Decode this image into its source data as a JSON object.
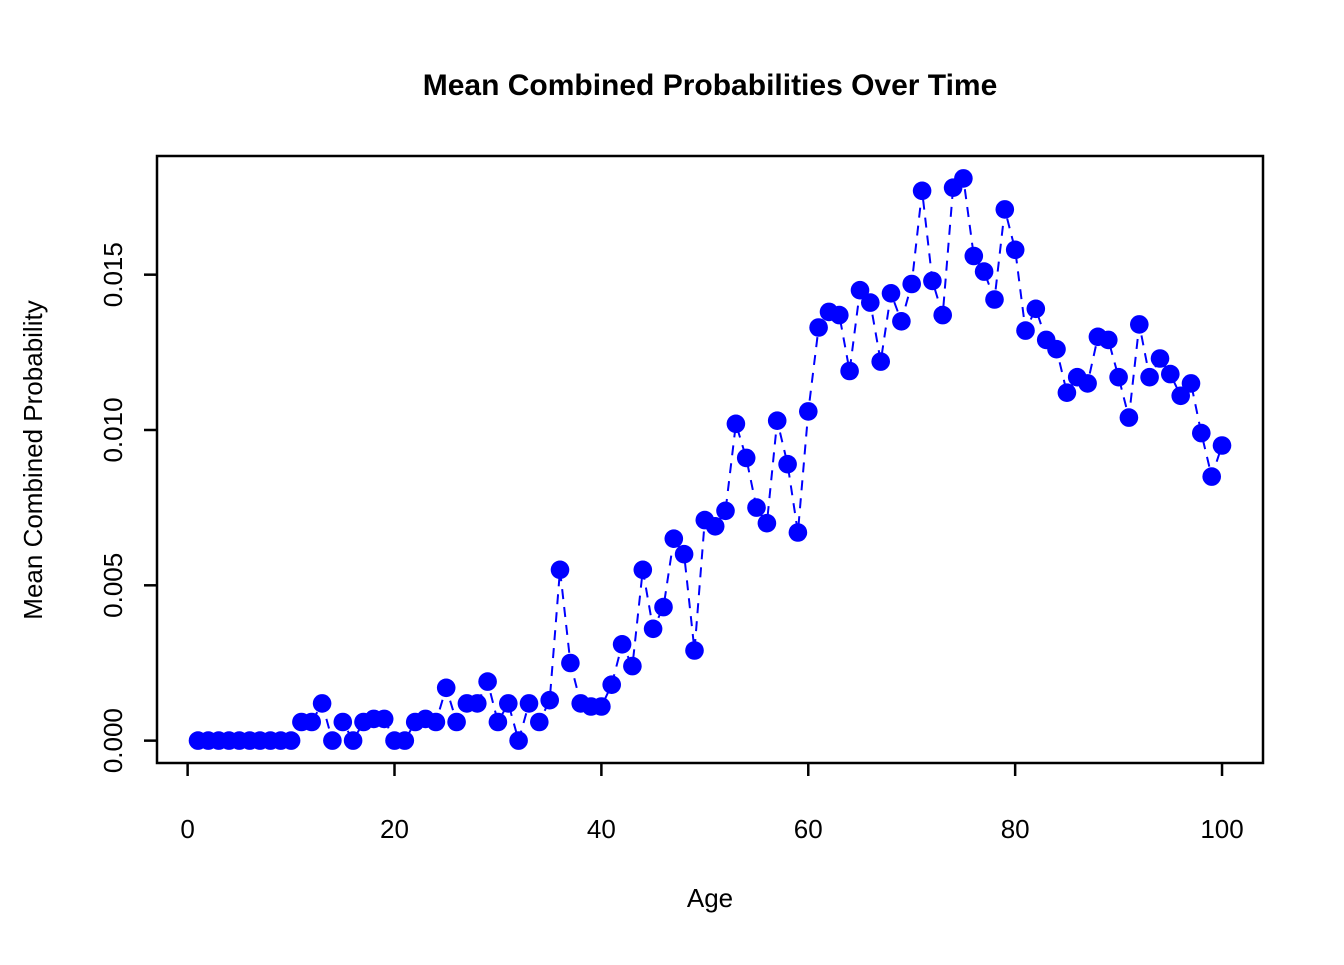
{
  "page": {
    "background": "#ffffff"
  },
  "chart_data": {
    "type": "line",
    "title": "Mean Combined Probabilities Over Time",
    "xlabel": "Age",
    "ylabel": "Mean Combined Probability",
    "grid": false,
    "legend": "none",
    "marker": "filled-circle",
    "line_style": "dashed",
    "point_color": "#0000FF",
    "line_color": "#0000FF",
    "axis_color": "#000000",
    "xlim": [
      -2.96,
      103.96
    ],
    "ylim": [
      -0.00072,
      0.01882
    ],
    "x_ticks": [
      0,
      20,
      40,
      60,
      80,
      100
    ],
    "x_tick_labels": [
      "0",
      "20",
      "40",
      "60",
      "80",
      "100"
    ],
    "y_ticks": [
      0.0,
      0.005,
      0.01,
      0.015
    ],
    "y_tick_labels": [
      "0.000",
      "0.005",
      "0.010",
      "0.015"
    ],
    "x": [
      1,
      2,
      3,
      4,
      5,
      6,
      7,
      8,
      9,
      10,
      11,
      12,
      13,
      14,
      15,
      16,
      17,
      18,
      19,
      20,
      21,
      22,
      23,
      24,
      25,
      26,
      27,
      28,
      29,
      30,
      31,
      32,
      33,
      34,
      35,
      36,
      37,
      38,
      39,
      40,
      41,
      42,
      43,
      44,
      45,
      46,
      47,
      48,
      49,
      50,
      51,
      52,
      53,
      54,
      55,
      56,
      57,
      58,
      59,
      60,
      61,
      62,
      63,
      64,
      65,
      66,
      67,
      68,
      69,
      70,
      71,
      72,
      73,
      74,
      75,
      76,
      77,
      78,
      79,
      80,
      81,
      82,
      83,
      84,
      85,
      86,
      87,
      88,
      89,
      90,
      91,
      92,
      93,
      94,
      95,
      96,
      97,
      98,
      99,
      100
    ],
    "values": [
      0.0,
      0.0,
      0.0,
      0.0,
      0.0,
      0.0,
      0.0,
      0.0,
      0.0,
      0.0,
      0.0006,
      0.0006,
      0.0012,
      0.0,
      0.0006,
      0.0,
      0.0006,
      0.0007,
      0.0007,
      0.0,
      0.0,
      0.0006,
      0.0007,
      0.0006,
      0.0017,
      0.0006,
      0.0012,
      0.0012,
      0.0019,
      0.0006,
      0.0012,
      0.0,
      0.0012,
      0.0006,
      0.0013,
      0.0055,
      0.0025,
      0.0012,
      0.0011,
      0.0011,
      0.0018,
      0.0031,
      0.0024,
      0.0055,
      0.0036,
      0.0043,
      0.0065,
      0.006,
      0.0029,
      0.0071,
      0.0069,
      0.0074,
      0.0102,
      0.0091,
      0.0075,
      0.007,
      0.0103,
      0.0089,
      0.0067,
      0.0106,
      0.0133,
      0.0138,
      0.0137,
      0.0119,
      0.0145,
      0.0141,
      0.0122,
      0.0144,
      0.0135,
      0.0147,
      0.0177,
      0.0148,
      0.0137,
      0.0178,
      0.0181,
      0.0156,
      0.0151,
      0.0142,
      0.0171,
      0.0158,
      0.0132,
      0.0139,
      0.0129,
      0.0126,
      0.0112,
      0.0117,
      0.0115,
      0.013,
      0.0129,
      0.0117,
      0.0104,
      0.0134,
      0.0117,
      0.0123,
      0.0118,
      0.0111,
      0.0115,
      0.0099,
      0.0085,
      0.0095
    ]
  }
}
